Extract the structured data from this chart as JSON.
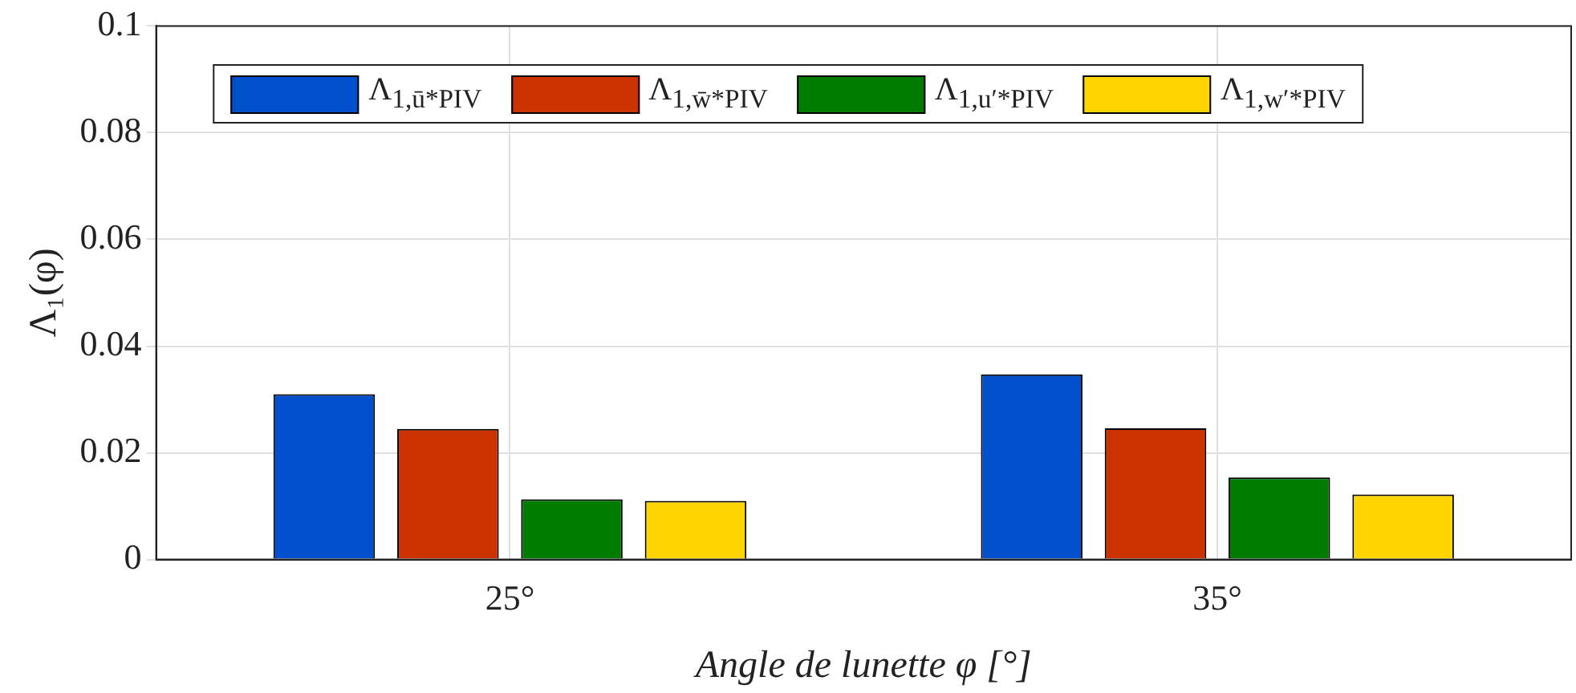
{
  "chart_data": {
    "type": "bar",
    "xlabel": "Angle de lunette φ [°]",
    "ylabel": "Λ₁(φ)",
    "categories": [
      "25°",
      "35°"
    ],
    "series": [
      {
        "name": "Λ$_{1,ū*PIV}$",
        "color": "#0050cc",
        "values": [
          0.031,
          0.0347
        ]
      },
      {
        "name": "Λ$_{1,w̄*PIV}$",
        "color": "#cc3300",
        "values": [
          0.0245,
          0.0246
        ]
      },
      {
        "name": "Λ$_{1,u′*PIV}$",
        "color": "#007d00",
        "values": [
          0.0113,
          0.0154
        ]
      },
      {
        "name": "Λ$_{1,w′*PIV}$",
        "color": "#ffd500",
        "values": [
          0.011,
          0.0122
        ]
      }
    ],
    "ylim": [
      0,
      0.1
    ],
    "yticks": [
      0,
      0.02,
      0.04,
      0.06,
      0.08,
      0.1
    ],
    "grid": true,
    "legend": "top"
  }
}
